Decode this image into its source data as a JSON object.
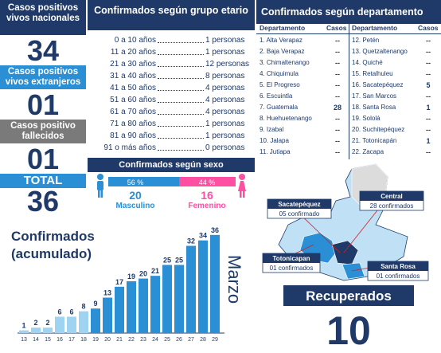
{
  "summary": {
    "pos_nacionales_label": "Casos positivos vivos nacionales",
    "pos_nacionales_value": "34",
    "pos_extranjeros_label": "Casos positivos vivos extranjeros",
    "pos_extranjeros_value": "01",
    "fallecidos_label": "Casos positivo fallecidos",
    "fallecidos_value": "01",
    "total_label": "TOTAL",
    "total_value": "36"
  },
  "age": {
    "title": "Confirmados según grupo etario",
    "rows": [
      {
        "range": "0 a 10 años",
        "value": "1 personas"
      },
      {
        "range": "11 a 20 años",
        "value": "1 personas"
      },
      {
        "range": "21 a 30 años",
        "value": "12 personas"
      },
      {
        "range": "31 a 40 años",
        "value": "8 personas"
      },
      {
        "range": "41 a 50 años",
        "value": "4 personas"
      },
      {
        "range": "51 a 60 años",
        "value": "4 personas"
      },
      {
        "range": "61 a 70 años",
        "value": "4 personas"
      },
      {
        "range": "71 a 80 años",
        "value": "1 personas"
      },
      {
        "range": "81 a 90 años",
        "value": "1 personas"
      },
      {
        "range": "91 o más años",
        "value": "0 personas"
      }
    ]
  },
  "sex": {
    "title": "Confirmados según sexo",
    "male_pct": "56 %",
    "female_pct": "44 %",
    "male_fraction": 0.56,
    "male_count": "20",
    "male_label": "Masculino",
    "female_count": "16",
    "female_label": "Femenino"
  },
  "dept": {
    "title": "Confirmados según departamento",
    "col_dept": "Departamento",
    "col_cases": "Casos",
    "left": [
      {
        "name": "1. Alta Verapaz",
        "cases": "--"
      },
      {
        "name": "2. Baja Verapaz",
        "cases": "--"
      },
      {
        "name": "3. Chimaltenango",
        "cases": "--"
      },
      {
        "name": "4. Chiquimula",
        "cases": "--"
      },
      {
        "name": "5. El Progreso",
        "cases": "--"
      },
      {
        "name": "6. Escuintla",
        "cases": "--"
      },
      {
        "name": "7. Guatemala",
        "cases": "28"
      },
      {
        "name": "8. Huehuetenango",
        "cases": "--"
      },
      {
        "name": "9. Izabal",
        "cases": "--"
      },
      {
        "name": "10. Jalapa",
        "cases": "--"
      },
      {
        "name": "11. Jutiapa",
        "cases": "--"
      }
    ],
    "right": [
      {
        "name": "12. Petén",
        "cases": "--"
      },
      {
        "name": "13. Quetzaltenango",
        "cases": "--"
      },
      {
        "name": "14. Quiché",
        "cases": "--"
      },
      {
        "name": "15. Retalhuleu",
        "cases": "--"
      },
      {
        "name": "16. Sacatepéquez",
        "cases": "5"
      },
      {
        "name": "17. San Marcos",
        "cases": "--"
      },
      {
        "name": "18. Santa Rosa",
        "cases": "1"
      },
      {
        "name": "19. Sololá",
        "cases": "--"
      },
      {
        "name": "20. Suchitepéquez",
        "cases": "--"
      },
      {
        "name": "21. Totonicapán",
        "cases": "1"
      },
      {
        "name": "22. Zacapa",
        "cases": "--"
      }
    ]
  },
  "chart_data": {
    "type": "bar",
    "title": "Confirmados (acumulado)",
    "month_label": "Marzo",
    "categories": [
      "13",
      "14",
      "15",
      "16",
      "17",
      "18",
      "19",
      "20",
      "21",
      "22",
      "23",
      "24",
      "25",
      "26",
      "27",
      "28",
      "29"
    ],
    "values": [
      1,
      2,
      2,
      6,
      6,
      8,
      9,
      13,
      17,
      19,
      20,
      21,
      25,
      25,
      32,
      34,
      36
    ],
    "ylim": [
      0,
      38
    ],
    "colors": {
      "bar_light": "#9fd3f2",
      "bar_dark": "#2a8fd4"
    }
  },
  "map": {
    "labels": [
      {
        "name": "Sacatepéquez",
        "sub": "05 confirmado"
      },
      {
        "name": "Central",
        "sub": "28 confirmados"
      },
      {
        "name": "Totonicapan",
        "sub": "01 confirmados"
      },
      {
        "name": "Santa Rosa",
        "sub": "01 confirmados"
      }
    ],
    "recovered_label": "Recuperados",
    "recovered_value": "10"
  },
  "colors": {
    "navy": "#1f3a68",
    "blue": "#2a8fd4",
    "pink": "#ff4fa3",
    "gray": "#7a7a7a"
  }
}
